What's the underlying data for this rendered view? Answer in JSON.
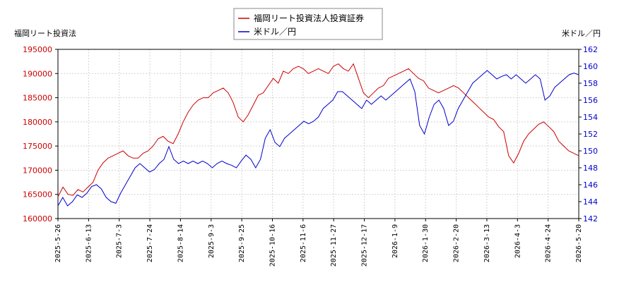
{
  "chart_data": {
    "type": "line",
    "title": "",
    "ylabel_left": "福岡リート投資法",
    "ylabel_right": "米ドル／円",
    "x_ticks": [
      "2025-5-26",
      "2025-6-13",
      "2025-7-3",
      "2025-7-24",
      "2025-8-14",
      "2025-9-3",
      "2025-9-25",
      "2025-10-16",
      "2025-11-6",
      "2025-11-27",
      "2025-12-17",
      "2026-1-9",
      "2026-1-30",
      "2026-2-20",
      "2026-3-13",
      "2026-4-3",
      "2026-4-24",
      "2026-5-20"
    ],
    "y_left_ticks": [
      "160000",
      "165000",
      "170000",
      "175000",
      "180000",
      "185000",
      "190000",
      "195000"
    ],
    "y_right_ticks": [
      "142",
      "144",
      "146",
      "148",
      "150",
      "152",
      "154",
      "156",
      "158",
      "160",
      "162"
    ],
    "ylim_left": [
      160000,
      195000
    ],
    "ylim_right": [
      142,
      162
    ],
    "grid": true,
    "legend_position": "top-center",
    "series": [
      {
        "name": "福岡リート投資法人投資証券",
        "axis": "left",
        "color": "#cc0000",
        "points": [
          [
            0,
            164500
          ],
          [
            0.5,
            166500
          ],
          [
            1,
            165000
          ],
          [
            1.5,
            164800
          ],
          [
            2,
            166000
          ],
          [
            2.5,
            165500
          ],
          [
            3,
            166500
          ],
          [
            3.5,
            167500
          ],
          [
            4,
            170000
          ],
          [
            4.5,
            171500
          ],
          [
            5,
            172500
          ],
          [
            5.5,
            173000
          ],
          [
            6,
            173500
          ],
          [
            6.5,
            174000
          ],
          [
            7,
            173000
          ],
          [
            7.5,
            172500
          ],
          [
            8,
            172500
          ],
          [
            8.5,
            173500
          ],
          [
            9,
            174000
          ],
          [
            9.5,
            175000
          ],
          [
            10,
            176500
          ],
          [
            10.5,
            177000
          ],
          [
            11,
            176000
          ],
          [
            11.5,
            175500
          ],
          [
            12,
            177500
          ],
          [
            12.5,
            180000
          ],
          [
            13,
            182000
          ],
          [
            13.5,
            183500
          ],
          [
            14,
            184500
          ],
          [
            14.5,
            185000
          ],
          [
            15,
            185000
          ],
          [
            15.5,
            186000
          ],
          [
            16,
            186500
          ],
          [
            16.5,
            187000
          ],
          [
            17,
            186000
          ],
          [
            17.5,
            184000
          ],
          [
            18,
            181000
          ],
          [
            18.5,
            180000
          ],
          [
            19,
            181500
          ],
          [
            19.5,
            183500
          ],
          [
            20,
            185500
          ],
          [
            20.5,
            186000
          ],
          [
            21,
            187500
          ],
          [
            21.5,
            189000
          ],
          [
            22,
            188000
          ],
          [
            22.5,
            190500
          ],
          [
            23,
            190000
          ],
          [
            23.5,
            191000
          ],
          [
            24,
            191500
          ],
          [
            24.5,
            191000
          ],
          [
            25,
            190000
          ],
          [
            25.5,
            190500
          ],
          [
            26,
            191000
          ],
          [
            26.5,
            190500
          ],
          [
            27,
            190000
          ],
          [
            27.5,
            191500
          ],
          [
            28,
            192000
          ],
          [
            28.5,
            191000
          ],
          [
            29,
            190500
          ],
          [
            29.5,
            192000
          ],
          [
            30,
            189000
          ],
          [
            30.5,
            186000
          ],
          [
            31,
            185000
          ],
          [
            31.5,
            186000
          ],
          [
            32,
            187000
          ],
          [
            32.5,
            187500
          ],
          [
            33,
            189000
          ],
          [
            33.5,
            189500
          ],
          [
            34,
            190000
          ],
          [
            34.5,
            190500
          ],
          [
            35,
            191000
          ],
          [
            35.5,
            190000
          ],
          [
            36,
            189000
          ],
          [
            36.5,
            188500
          ],
          [
            37,
            187000
          ],
          [
            37.5,
            186500
          ],
          [
            38,
            186000
          ],
          [
            38.5,
            186500
          ],
          [
            39,
            187000
          ],
          [
            39.5,
            187500
          ],
          [
            40,
            187000
          ],
          [
            40.5,
            186000
          ],
          [
            41,
            185000
          ],
          [
            41.5,
            184000
          ],
          [
            42,
            183000
          ],
          [
            42.5,
            182000
          ],
          [
            43,
            181000
          ],
          [
            43.5,
            180500
          ],
          [
            44,
            179000
          ],
          [
            44.5,
            178000
          ],
          [
            45,
            173000
          ],
          [
            45.5,
            171500
          ],
          [
            46,
            173500
          ],
          [
            46.5,
            176000
          ],
          [
            47,
            177500
          ],
          [
            47.5,
            178500
          ],
          [
            48,
            179500
          ],
          [
            48.5,
            180000
          ],
          [
            49,
            179000
          ],
          [
            49.5,
            178000
          ],
          [
            50,
            176000
          ],
          [
            50.5,
            175000
          ],
          [
            51,
            174000
          ],
          [
            51.5,
            173500
          ],
          [
            52,
            173000
          ]
        ]
      },
      {
        "name": "米ドル／円",
        "axis": "right",
        "color": "#0000cc",
        "points": [
          [
            0,
            143.5
          ],
          [
            0.5,
            144.5
          ],
          [
            1,
            143.5
          ],
          [
            1.5,
            144.0
          ],
          [
            2,
            144.8
          ],
          [
            2.5,
            144.5
          ],
          [
            3,
            145.0
          ],
          [
            3.5,
            145.8
          ],
          [
            4,
            146.0
          ],
          [
            4.5,
            145.5
          ],
          [
            5,
            144.5
          ],
          [
            5.5,
            144.0
          ],
          [
            6,
            143.8
          ],
          [
            6.5,
            145.0
          ],
          [
            7,
            146.0
          ],
          [
            7.5,
            147.0
          ],
          [
            8,
            148.0
          ],
          [
            8.5,
            148.5
          ],
          [
            9,
            148.0
          ],
          [
            9.5,
            147.5
          ],
          [
            10,
            147.8
          ],
          [
            10.5,
            148.5
          ],
          [
            11,
            149.0
          ],
          [
            11.5,
            150.5
          ],
          [
            12,
            149.0
          ],
          [
            12.5,
            148.5
          ],
          [
            13,
            148.8
          ],
          [
            13.5,
            148.5
          ],
          [
            14,
            148.8
          ],
          [
            14.5,
            148.5
          ],
          [
            15,
            148.8
          ],
          [
            15.5,
            148.5
          ],
          [
            16,
            148.0
          ],
          [
            16.5,
            148.5
          ],
          [
            17,
            148.8
          ],
          [
            17.5,
            148.5
          ],
          [
            18,
            148.3
          ],
          [
            18.5,
            148.0
          ],
          [
            19,
            148.8
          ],
          [
            19.5,
            149.5
          ],
          [
            20,
            149.0
          ],
          [
            20.5,
            148.0
          ],
          [
            21,
            149.0
          ],
          [
            21.5,
            151.5
          ],
          [
            22,
            152.5
          ],
          [
            22.5,
            151.0
          ],
          [
            23,
            150.5
          ],
          [
            23.5,
            151.5
          ],
          [
            24,
            152.0
          ],
          [
            24.5,
            152.5
          ],
          [
            25,
            153.0
          ],
          [
            25.5,
            153.5
          ],
          [
            26,
            153.2
          ],
          [
            26.5,
            153.5
          ],
          [
            27,
            154.0
          ],
          [
            27.5,
            155.0
          ],
          [
            28,
            155.5
          ],
          [
            28.5,
            156.0
          ],
          [
            29,
            157.0
          ],
          [
            29.5,
            157.0
          ],
          [
            30,
            156.5
          ],
          [
            30.5,
            156.0
          ],
          [
            31,
            155.5
          ],
          [
            31.5,
            155.0
          ],
          [
            32,
            156.0
          ],
          [
            32.5,
            155.5
          ],
          [
            33,
            156.0
          ],
          [
            33.5,
            156.5
          ],
          [
            34,
            156.0
          ],
          [
            34.5,
            156.5
          ],
          [
            35,
            157.0
          ],
          [
            35.5,
            157.5
          ],
          [
            36,
            158.0
          ],
          [
            36.5,
            158.5
          ],
          [
            37,
            157.0
          ],
          [
            37.5,
            153.0
          ],
          [
            38,
            152.0
          ],
          [
            38.5,
            154.0
          ],
          [
            39,
            155.5
          ],
          [
            39.5,
            156.0
          ],
          [
            40,
            155.0
          ],
          [
            40.5,
            153.0
          ],
          [
            41,
            153.5
          ],
          [
            41.5,
            155.0
          ],
          [
            42,
            156.0
          ],
          [
            42.5,
            157.0
          ],
          [
            43,
            158.0
          ],
          [
            43.5,
            158.5
          ],
          [
            44,
            159.0
          ],
          [
            44.5,
            159.5
          ],
          [
            45,
            159.0
          ],
          [
            45.5,
            158.5
          ],
          [
            46,
            158.8
          ],
          [
            46.5,
            159.0
          ],
          [
            47,
            158.5
          ],
          [
            47.5,
            159.0
          ],
          [
            48,
            158.5
          ],
          [
            48.5,
            158.0
          ],
          [
            49,
            158.5
          ],
          [
            49.5,
            159.0
          ],
          [
            50,
            158.5
          ],
          [
            50.5,
            156.0
          ],
          [
            51,
            156.5
          ],
          [
            51.5,
            157.5
          ],
          [
            52,
            158.0
          ],
          [
            52.5,
            158.5
          ],
          [
            53,
            159.0
          ],
          [
            53.5,
            159.2
          ],
          [
            54,
            159.0
          ]
        ]
      }
    ]
  }
}
